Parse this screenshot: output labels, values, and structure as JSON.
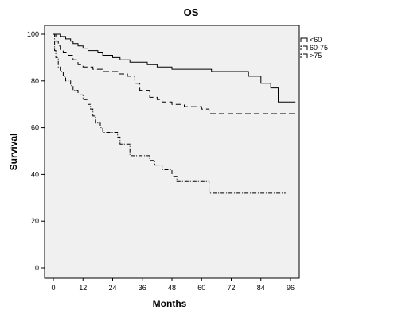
{
  "chart_data": {
    "type": "line",
    "title": "OS",
    "xlabel": "Months",
    "ylabel": "Survival",
    "xlim": [
      0,
      96
    ],
    "ylim": [
      0,
      100
    ],
    "xticks": [
      0,
      12,
      24,
      36,
      48,
      60,
      72,
      84,
      96
    ],
    "yticks": [
      0,
      20,
      40,
      60,
      80,
      100
    ],
    "x_tick_labels": [
      "0",
      "12",
      "24",
      "36",
      "48",
      "60",
      "72",
      "84",
      "96"
    ],
    "y_tick_labels": [
      "0",
      "20",
      "40",
      "60",
      "80",
      "100"
    ],
    "grid": false,
    "legend_position": "right-top",
    "series": [
      {
        "name": "<60",
        "style": "solid",
        "color": "#000000",
        "end_x": 98,
        "points": [
          [
            0,
            100
          ],
          [
            3,
            99
          ],
          [
            5,
            98
          ],
          [
            7,
            97
          ],
          [
            8,
            96
          ],
          [
            10,
            95
          ],
          [
            12,
            94
          ],
          [
            14,
            93
          ],
          [
            18,
            92
          ],
          [
            20,
            91
          ],
          [
            24,
            90
          ],
          [
            27,
            89
          ],
          [
            31,
            88
          ],
          [
            38,
            87
          ],
          [
            42,
            86
          ],
          [
            48,
            85
          ],
          [
            64,
            84
          ],
          [
            79,
            82
          ],
          [
            84,
            79
          ],
          [
            88,
            77
          ],
          [
            91,
            71
          ]
        ]
      },
      {
        "name": "60-75",
        "style": "dashed",
        "color": "#000000",
        "end_x": 98,
        "points": [
          [
            0,
            100
          ],
          [
            1,
            97
          ],
          [
            2,
            95
          ],
          [
            3,
            93
          ],
          [
            4,
            92
          ],
          [
            6,
            91
          ],
          [
            8,
            89
          ],
          [
            10,
            87
          ],
          [
            12,
            86
          ],
          [
            16,
            85
          ],
          [
            20,
            84
          ],
          [
            26,
            83
          ],
          [
            30,
            82
          ],
          [
            33,
            79
          ],
          [
            35,
            76
          ],
          [
            39,
            73
          ],
          [
            42,
            72
          ],
          [
            44,
            71
          ],
          [
            48,
            70
          ],
          [
            53,
            69
          ],
          [
            60,
            68
          ],
          [
            63,
            66
          ]
        ]
      },
      {
        "name": ">75",
        "style": "dash-dot",
        "color": "#000000",
        "end_x": 94,
        "points": [
          [
            0,
            100
          ],
          [
            0.5,
            93
          ],
          [
            1,
            90
          ],
          [
            2,
            86
          ],
          [
            3,
            84
          ],
          [
            4,
            82
          ],
          [
            5,
            80
          ],
          [
            7,
            78
          ],
          [
            8,
            76
          ],
          [
            10,
            74
          ],
          [
            12,
            72
          ],
          [
            14,
            70
          ],
          [
            15,
            68
          ],
          [
            16,
            65
          ],
          [
            17,
            62
          ],
          [
            19,
            60
          ],
          [
            20,
            58
          ],
          [
            26,
            56
          ],
          [
            27,
            53
          ],
          [
            31,
            48
          ],
          [
            39,
            46
          ],
          [
            41,
            44
          ],
          [
            44,
            42
          ],
          [
            48,
            39
          ],
          [
            50,
            37
          ],
          [
            63,
            32
          ]
        ]
      }
    ]
  }
}
